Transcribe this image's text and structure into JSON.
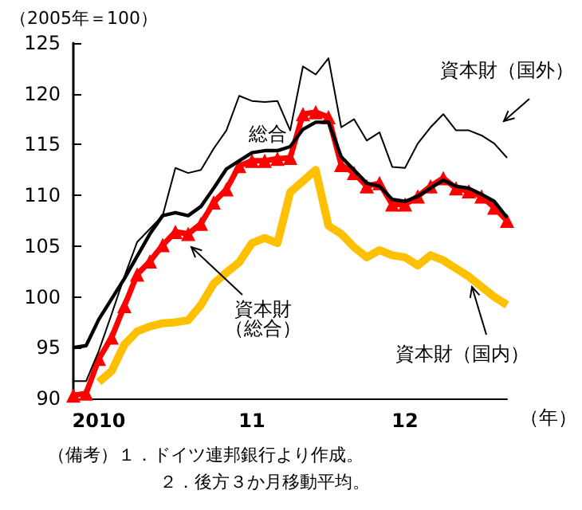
{
  "chart_data": {
    "type": "line",
    "ylabel": "（2005年＝100）",
    "xlabel": "（年）",
    "categories": [
      null,
      null,
      "2010",
      null,
      null,
      null,
      null,
      null,
      null,
      null,
      null,
      null,
      null,
      null,
      "11",
      null,
      null,
      null,
      null,
      null,
      null,
      null,
      null,
      null,
      null,
      null,
      "12",
      null,
      null,
      null,
      null,
      null,
      null,
      null,
      null
    ],
    "series": [
      {
        "name": "資本財（国外）",
        "color": "#000000",
        "values": [
          91.7,
          91.7,
          94.7,
          98.3,
          102.0,
          105.4,
          106.7,
          108.0,
          112.7,
          112.2,
          112.5,
          114.6,
          116.4,
          119.8,
          119.3,
          119.2,
          119.3,
          116.4,
          122.7,
          121.9,
          123.5,
          116.7,
          117.5,
          115.4,
          116.2,
          112.8,
          112.7,
          115.1,
          116.7,
          118.0,
          116.4,
          116.4,
          115.9,
          115.1,
          113.7
        ]
      },
      {
        "name": "総合",
        "color": "#000000",
        "values": [
          95.0,
          95.2,
          97.8,
          99.8,
          101.8,
          104.0,
          106.2,
          108.0,
          108.3,
          108.0,
          108.9,
          110.7,
          112.6,
          113.4,
          114.2,
          114.4,
          114.4,
          114.8,
          116.5,
          117.2,
          117.2,
          113.8,
          112.5,
          111.2,
          110.9,
          109.6,
          109.4,
          109.9,
          110.7,
          111.5,
          110.9,
          110.7,
          110.1,
          109.4,
          107.8
        ]
      },
      {
        "name": "資本財（総合）",
        "color": "#ff0000",
        "marker": "triangle",
        "values": [
          90.3,
          90.5,
          93.9,
          96.0,
          99.1,
          102.2,
          103.5,
          105.1,
          106.4,
          106.2,
          107.2,
          109.3,
          110.6,
          112.9,
          113.4,
          113.4,
          113.6,
          113.7,
          118.0,
          118.2,
          117.7,
          113.0,
          112.2,
          110.9,
          111.2,
          109.1,
          109.1,
          109.9,
          110.9,
          111.7,
          110.7,
          110.4,
          109.9,
          108.8,
          107.5
        ]
      },
      {
        "name": "資本財（国内）",
        "color": "#ffc000",
        "values": [
          null,
          null,
          91.6,
          92.7,
          95.3,
          96.6,
          97.1,
          97.4,
          97.5,
          97.7,
          99.2,
          101.3,
          102.4,
          103.4,
          105.3,
          105.8,
          105.3,
          110.3,
          111.4,
          112.5,
          107.0,
          106.2,
          104.9,
          103.9,
          104.6,
          104.1,
          103.9,
          103.1,
          104.1,
          103.6,
          102.8,
          102.0,
          101.0,
          100.0,
          99.2
        ]
      }
    ],
    "ylim": [
      90,
      125
    ],
    "yticks": [
      90,
      95,
      100,
      105,
      110,
      115,
      120,
      125
    ],
    "grid": false,
    "legend": false,
    "annotations": [
      "（備考）１．ドイツ連邦銀行より作成。",
      "２．後方３か月移動平均。"
    ]
  }
}
